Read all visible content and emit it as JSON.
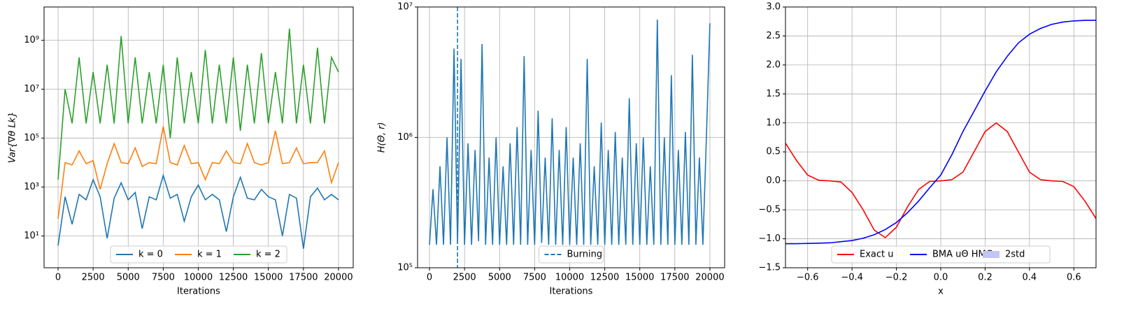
{
  "chart_data": [
    {
      "type": "line",
      "ylabel": "Var{∇θ Lk}",
      "xlabel": "Iterations",
      "log_y": true,
      "grid": true,
      "legend": "lower center",
      "xlim": [
        -1000,
        21050
      ],
      "ylim": [
        0.5,
        23000000000
      ],
      "xticks": [
        0,
        2500,
        5000,
        7500,
        10000,
        12500,
        15000,
        17500,
        20000
      ],
      "yticks": [
        {
          "value": 10,
          "label": "10¹"
        },
        {
          "value": 1000,
          "label": "10³"
        },
        {
          "value": 100000,
          "label": "10⁵"
        },
        {
          "value": 10000000,
          "label": "10⁷"
        },
        {
          "value": 1000000000,
          "label": "10⁹"
        }
      ],
      "x": [
        0,
        500,
        1000,
        1500,
        2000,
        2500,
        3000,
        3500,
        4000,
        4500,
        5000,
        5500,
        6000,
        6500,
        7000,
        7500,
        8000,
        8500,
        9000,
        9500,
        10000,
        10500,
        11000,
        11500,
        12000,
        12500,
        13000,
        13500,
        14000,
        14500,
        15000,
        15500,
        16000,
        16500,
        17000,
        17500,
        18000,
        18500,
        19000,
        19500,
        20000
      ],
      "series": [
        {
          "name": "k = 0",
          "color": "#1f77b4",
          "values": [
            4,
            400,
            30,
            500,
            300,
            2000,
            400,
            8,
            350,
            1500,
            300,
            600,
            20,
            400,
            300,
            3000,
            350,
            500,
            40,
            400,
            1200,
            300,
            500,
            300,
            15,
            400,
            2500,
            350,
            300,
            800,
            400,
            300,
            10,
            500,
            350,
            3,
            400,
            900,
            300,
            500,
            300
          ]
        },
        {
          "name": "k = 1",
          "color": "#ff7f0e",
          "values": [
            50,
            10000,
            8000,
            30000,
            9000,
            12000,
            800,
            9000,
            60000,
            10000,
            9000,
            40000,
            7000,
            10000,
            9000,
            300000,
            10000,
            8000,
            50000,
            9000,
            10000,
            2000,
            10000,
            9000,
            30000,
            10000,
            9000,
            60000,
            10000,
            8000,
            10000,
            200000,
            9000,
            10000,
            40000,
            9000,
            10000,
            10000,
            30000,
            1500,
            10000
          ]
        },
        {
          "name": "k = 2",
          "color": "#2ca02c",
          "values": [
            2000,
            10000000,
            400000,
            200000000,
            400000,
            50000000,
            400000,
            100000000,
            400000,
            1500000000,
            400000,
            200000000,
            400000,
            50000000,
            400000,
            100000000,
            100000,
            200000000,
            400000,
            50000000,
            400000,
            400000000,
            400000,
            100000000,
            400000,
            200000000,
            200000,
            100000000,
            400000,
            300000000,
            400000,
            50000000,
            400000,
            3000000000,
            400000,
            100000000,
            400000,
            500000000,
            400000,
            200000000,
            50000000
          ]
        }
      ]
    },
    {
      "type": "line",
      "ylabel": "H(Θ, r)",
      "xlabel": "Iterations",
      "log_y": true,
      "grid": true,
      "legend": "lower center",
      "xlim": [
        -850,
        21050
      ],
      "ylim": [
        100000,
        10000000
      ],
      "xticks": [
        0,
        2500,
        5000,
        7500,
        10000,
        12500,
        15000,
        17500,
        20000
      ],
      "yticks": [
        {
          "value": 100000,
          "label": "10⁵"
        },
        {
          "value": 1000000,
          "label": "10⁶"
        },
        {
          "value": 10000000,
          "label": "10⁷"
        }
      ],
      "x": [
        0,
        250,
        500,
        750,
        1000,
        1250,
        1500,
        1750,
        2000,
        2250,
        2500,
        2750,
        3000,
        3250,
        3500,
        3750,
        4000,
        4250,
        4500,
        4750,
        5000,
        5250,
        5500,
        5750,
        6000,
        6250,
        6500,
        6750,
        7000,
        7250,
        7500,
        7750,
        8000,
        8250,
        8500,
        8750,
        9000,
        9250,
        9500,
        9750,
        10000,
        10250,
        10500,
        10750,
        11000,
        11250,
        11500,
        11750,
        12000,
        12250,
        12500,
        12750,
        13000,
        13250,
        13500,
        13750,
        14000,
        14250,
        14500,
        14750,
        15000,
        15250,
        15500,
        15750,
        16000,
        16250,
        16500,
        16750,
        17000,
        17250,
        17500,
        17750,
        18000,
        18250,
        18500,
        18750,
        19000,
        19250,
        19500,
        19750,
        20000
      ],
      "series": [
        {
          "color": "#1f77b4",
          "values": [
            150000,
            400000,
            150000,
            600000,
            150000,
            1000000,
            150000,
            4800000,
            155000,
            4000000,
            150000,
            900000,
            150000,
            800000,
            160000,
            5200000,
            150000,
            700000,
            150000,
            1000000,
            150000,
            600000,
            150000,
            900000,
            150000,
            1200000,
            150000,
            4200000,
            150000,
            800000,
            150000,
            1600000,
            155000,
            700000,
            150000,
            1400000,
            150000,
            800000,
            150000,
            1200000,
            150000,
            700000,
            150000,
            900000,
            150000,
            4000000,
            150000,
            600000,
            150000,
            1300000,
            150000,
            800000,
            150000,
            1100000,
            150000,
            700000,
            150000,
            2000000,
            150000,
            900000,
            150000,
            1000000,
            150000,
            600000,
            150000,
            8000000,
            150000,
            1000000,
            150000,
            3000000,
            150000,
            800000,
            150000,
            1100000,
            150000,
            4300000,
            150000,
            700000,
            150000,
            1000000,
            7500000
          ]
        }
      ],
      "vlines": [
        {
          "name": "Burning",
          "x": 2000,
          "color": "#1f77b4"
        }
      ]
    },
    {
      "type": "line",
      "xlabel": "x",
      "grid": true,
      "legend": "lower center",
      "xlim": [
        -0.7,
        0.7
      ],
      "ylim": [
        -1.5,
        3
      ],
      "xticks": [
        {
          "value": -0.6,
          "label": "−0.6"
        },
        {
          "value": -0.4,
          "label": "−0.4"
        },
        {
          "value": -0.2,
          "label": "−0.2"
        },
        {
          "value": 0,
          "label": "0.0"
        },
        0.2,
        0.4,
        0.6
      ],
      "yticks": [
        {
          "value": -1.5,
          "label": "−1.5"
        },
        {
          "value": -1,
          "label": "−1.0"
        },
        {
          "value": -0.5,
          "label": "−0.5"
        },
        {
          "value": 0,
          "label": "0.0"
        },
        0.5,
        {
          "value": 1,
          "label": "1.0"
        },
        1.5,
        {
          "value": 2,
          "label": "2.0"
        },
        2.5,
        {
          "value": 3,
          "label": "3.0"
        }
      ],
      "x": [
        -0.7,
        -0.65,
        -0.6,
        -0.55,
        -0.5,
        -0.45,
        -0.4,
        -0.35,
        -0.3,
        -0.25,
        -0.2,
        -0.15,
        -0.1,
        -0.05,
        0,
        0.05,
        0.1,
        0.15,
        0.2,
        0.25,
        0.3,
        0.35,
        0.4,
        0.45,
        0.5,
        0.55,
        0.6,
        0.65,
        0.7
      ],
      "series": [
        {
          "name": "Exact u",
          "color": "#ff0000",
          "values": [
            0.65,
            0.35,
            0.1,
            0.01,
            0,
            -0.02,
            -0.2,
            -0.5,
            -0.85,
            -0.98,
            -0.8,
            -0.45,
            -0.15,
            -0.01,
            0,
            0.02,
            0.15,
            0.5,
            0.85,
            1.0,
            0.85,
            0.5,
            0.15,
            0.02,
            0,
            -0.01,
            -0.1,
            -0.35,
            -0.65
          ]
        },
        {
          "name": "BMA uΘ HMC",
          "color": "#0000ff",
          "values": [
            -1.085,
            -1.085,
            -1.08,
            -1.075,
            -1.07,
            -1.05,
            -1.03,
            -0.99,
            -0.93,
            -0.84,
            -0.72,
            -0.55,
            -0.35,
            -0.12,
            0.1,
            0.45,
            0.85,
            1.2,
            1.55,
            1.88,
            2.15,
            2.38,
            2.53,
            2.63,
            2.7,
            2.74,
            2.76,
            2.77,
            2.77
          ]
        }
      ],
      "band": {
        "name": "2std",
        "color": "#c4c4f6"
      }
    }
  ]
}
